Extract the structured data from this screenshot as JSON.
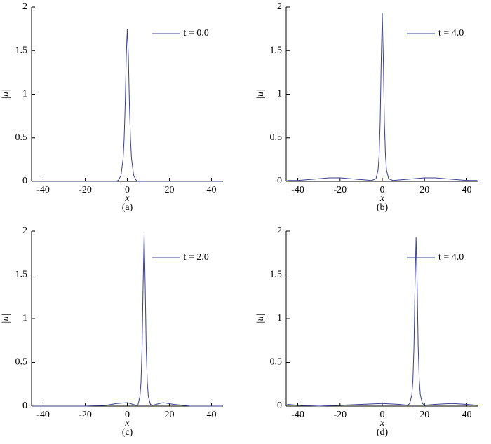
{
  "chart_data": [
    {
      "type": "line",
      "caption": "(a)",
      "xlabel": "x",
      "ylabel": "|u|",
      "xlim": [
        -45.5,
        45.5
      ],
      "ylim": [
        0,
        2
      ],
      "xticks": [
        -40,
        -20,
        0,
        20,
        40
      ],
      "yticks": [
        0,
        0.5,
        1,
        1.5,
        2
      ],
      "x": [
        -45,
        -40,
        -30,
        -20,
        -10,
        -5,
        -4,
        -3,
        -2,
        -1.5,
        -1,
        -0.5,
        0,
        0.5,
        1,
        1.5,
        2,
        3,
        4,
        5,
        10,
        20,
        30,
        40,
        45
      ],
      "series": [
        {
          "name": "t = 0.0",
          "color": "#3b3f8f",
          "values": [
            0,
            0,
            0,
            0,
            0,
            0,
            0.02,
            0.07,
            0.26,
            0.49,
            0.89,
            1.44,
            1.75,
            1.44,
            0.89,
            0.49,
            0.26,
            0.07,
            0.02,
            0,
            0,
            0,
            0,
            0,
            0
          ]
        }
      ]
    },
    {
      "type": "line",
      "caption": "(b)",
      "xlabel": "x",
      "ylabel": "|u|",
      "xlim": [
        -45.5,
        45.5
      ],
      "ylim": [
        0,
        2
      ],
      "xticks": [
        -40,
        -20,
        0,
        20,
        40
      ],
      "yticks": [
        0,
        0.5,
        1,
        1.5,
        2
      ],
      "x": [
        -45,
        -40,
        -35,
        -30,
        -25,
        -20,
        -15,
        -10,
        -5,
        -4,
        -3,
        -2,
        -1.5,
        -1,
        -0.5,
        0,
        0.5,
        1,
        1.5,
        2,
        3,
        4,
        5,
        10,
        15,
        20,
        25,
        30,
        35,
        40,
        45
      ],
      "series": [
        {
          "name": "t = 4.0",
          "color": "#3b3f8f",
          "values": [
            0.01,
            0.01,
            0.02,
            0.03,
            0.04,
            0.04,
            0.03,
            0.02,
            0.01,
            0.02,
            0.03,
            0.13,
            0.3,
            0.68,
            1.4,
            1.93,
            1.4,
            0.68,
            0.3,
            0.13,
            0.03,
            0.02,
            0.01,
            0.02,
            0.03,
            0.04,
            0.04,
            0.03,
            0.02,
            0.01,
            0.01
          ]
        }
      ]
    },
    {
      "type": "line",
      "caption": "(c)",
      "xlabel": "x",
      "ylabel": "|u|",
      "xlim": [
        -45.5,
        45.5
      ],
      "ylim": [
        0,
        2
      ],
      "xticks": [
        -40,
        -20,
        0,
        20,
        40
      ],
      "yticks": [
        0,
        0.5,
        1,
        1.5,
        2
      ],
      "x": [
        -45,
        -40,
        -30,
        -20,
        -10,
        -5,
        0,
        4,
        5,
        6,
        6.5,
        7,
        7.5,
        8,
        8.5,
        9,
        9.5,
        10,
        11,
        12,
        17,
        22,
        30,
        40,
        45
      ],
      "series": [
        {
          "name": "t = 2.0",
          "color": "#3b3f8f",
          "values": [
            0,
            0,
            0,
            0,
            0.01,
            0.03,
            0.04,
            0.01,
            0.01,
            0.11,
            0.27,
            0.65,
            1.38,
            1.98,
            1.38,
            0.65,
            0.27,
            0.11,
            0.02,
            0.01,
            0.04,
            0.02,
            0,
            0,
            0
          ]
        }
      ]
    },
    {
      "type": "line",
      "caption": "(d)",
      "xlabel": "x",
      "ylabel": "|u|",
      "xlim": [
        -45.5,
        45.5
      ],
      "ylim": [
        0,
        2
      ],
      "xticks": [
        -40,
        -20,
        0,
        20,
        40
      ],
      "yticks": [
        0,
        0.5,
        1,
        1.5,
        2
      ],
      "x": [
        -45,
        -40,
        -30,
        -20,
        -10,
        0,
        8,
        12,
        13,
        14,
        14.5,
        15,
        15.5,
        16,
        16.5,
        17,
        17.5,
        18,
        19,
        20,
        25,
        33,
        40,
        45
      ],
      "series": [
        {
          "name": "t = 4.0",
          "color": "#3b3f8f",
          "values": [
            0.02,
            0.01,
            0,
            0.01,
            0.02,
            0.03,
            0.02,
            0.01,
            0.03,
            0.13,
            0.3,
            0.68,
            1.4,
            1.93,
            1.4,
            0.68,
            0.3,
            0.13,
            0.03,
            0.01,
            0.02,
            0.03,
            0.02,
            0.01
          ]
        }
      ]
    }
  ]
}
